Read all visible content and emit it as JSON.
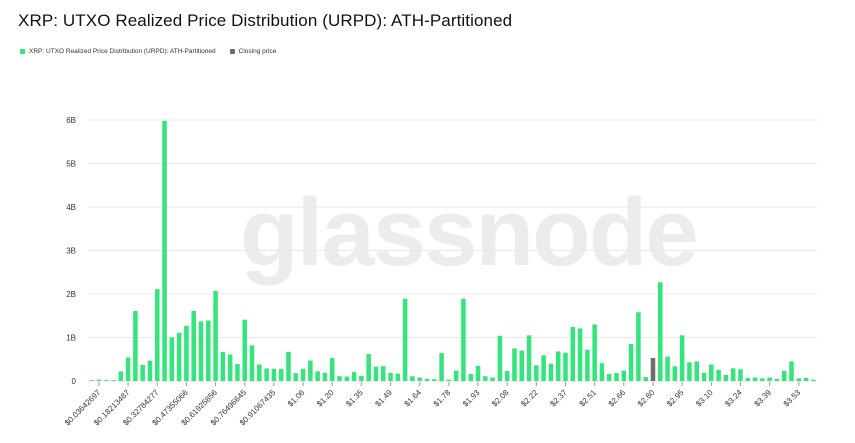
{
  "chart_data": {
    "type": "bar",
    "title": "XRP: UTXO Realized Price Distribution (URPD): ATH-Partitioned",
    "legend": [
      {
        "label": "XRP: UTXO Realized Price Distribution (URPD): ATH-Partitioned",
        "color": "#33e57a"
      },
      {
        "label": "Closing price",
        "color": "#6d6d6d"
      }
    ],
    "legend_position": "top-left",
    "grid": true,
    "watermark": "glassnode",
    "ylim": [
      0,
      6000000000
    ],
    "y_ticks": [
      {
        "value": 0,
        "label": "0"
      },
      {
        "value": 1000000000,
        "label": "1B"
      },
      {
        "value": 2000000000,
        "label": "2B"
      },
      {
        "value": 3000000000,
        "label": "3B"
      },
      {
        "value": 4000000000,
        "label": "4B"
      },
      {
        "value": 5000000000,
        "label": "5B"
      },
      {
        "value": 6000000000,
        "label": "6B"
      }
    ],
    "x_tick_labels": [
      {
        "index": 1,
        "label": "$0.03642697"
      },
      {
        "index": 5,
        "label": "$0.18213487"
      },
      {
        "index": 9,
        "label": "$0.32784277"
      },
      {
        "index": 13,
        "label": "$0.47355066"
      },
      {
        "index": 17,
        "label": "$0.61925856"
      },
      {
        "index": 21,
        "label": "$0.76496645"
      },
      {
        "index": 25,
        "label": "$0.91067435"
      },
      {
        "index": 29,
        "label": "$1.06"
      },
      {
        "index": 33,
        "label": "$1.20"
      },
      {
        "index": 37,
        "label": "$1.35"
      },
      {
        "index": 41,
        "label": "$1.49"
      },
      {
        "index": 45,
        "label": "$1.64"
      },
      {
        "index": 49,
        "label": "$1.78"
      },
      {
        "index": 53,
        "label": "$1.93"
      },
      {
        "index": 57,
        "label": "$2.08"
      },
      {
        "index": 61,
        "label": "$2.22"
      },
      {
        "index": 65,
        "label": "$2.37"
      },
      {
        "index": 69,
        "label": "$2.51"
      },
      {
        "index": 73,
        "label": "$2.66"
      },
      {
        "index": 77,
        "label": "$2.80"
      },
      {
        "index": 81,
        "label": "$2.95"
      },
      {
        "index": 85,
        "label": "$3.10"
      },
      {
        "index": 89,
        "label": "$3.24"
      },
      {
        "index": 93,
        "label": "$3.39"
      },
      {
        "index": 97,
        "label": "$3.53"
      }
    ],
    "bar_color": "#33e57a",
    "highlight_color": "#6d6d6d",
    "highlight_index": 77,
    "values": [
      0,
      30000000,
      0,
      20000000,
      220000000,
      540000000,
      1610000000,
      370000000,
      470000000,
      2110000000,
      5980000000,
      1000000000,
      1110000000,
      1270000000,
      1610000000,
      1370000000,
      1390000000,
      2070000000,
      670000000,
      610000000,
      390000000,
      1410000000,
      820000000,
      380000000,
      290000000,
      280000000,
      280000000,
      670000000,
      180000000,
      280000000,
      470000000,
      220000000,
      190000000,
      530000000,
      110000000,
      100000000,
      210000000,
      120000000,
      620000000,
      330000000,
      340000000,
      190000000,
      170000000,
      1890000000,
      110000000,
      80000000,
      50000000,
      40000000,
      640000000,
      30000000,
      240000000,
      1890000000,
      160000000,
      350000000,
      110000000,
      80000000,
      1040000000,
      230000000,
      750000000,
      700000000,
      1050000000,
      360000000,
      590000000,
      400000000,
      680000000,
      650000000,
      1240000000,
      1210000000,
      720000000,
      1300000000,
      410000000,
      160000000,
      180000000,
      240000000,
      850000000,
      1580000000,
      90000000,
      530000000,
      2270000000,
      560000000,
      340000000,
      1050000000,
      430000000,
      450000000,
      190000000,
      380000000,
      260000000,
      140000000,
      290000000,
      270000000,
      70000000,
      80000000,
      60000000,
      80000000,
      50000000,
      230000000,
      450000000,
      60000000,
      70000000,
      30000000
    ]
  }
}
